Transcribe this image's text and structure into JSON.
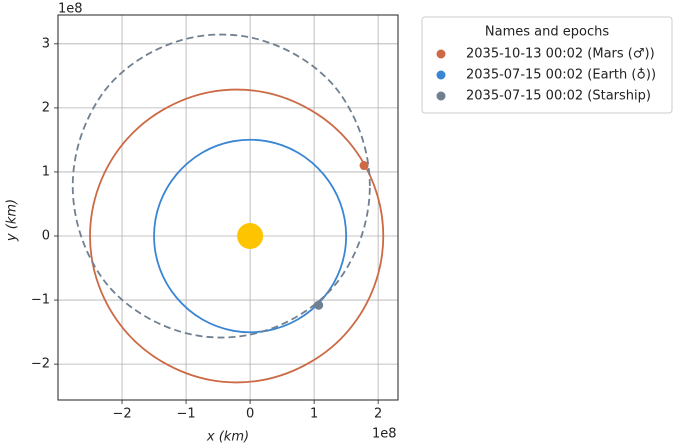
{
  "chart_data": {
    "type": "line",
    "legend_title": "Names and epochs",
    "x_label": "x (km)",
    "y_label": "y (km)",
    "x_offset_label": "1e8",
    "y_offset_label": "1e8",
    "xlim": [
      -3.0,
      2.31
    ],
    "ylim": [
      -2.56,
      3.45
    ],
    "xticks": [
      {
        "value": -2,
        "label": "−2"
      },
      {
        "value": -1,
        "label": "−1"
      },
      0,
      1,
      2
    ],
    "yticks": [
      {
        "value": -2,
        "label": "−2"
      },
      {
        "value": -1,
        "label": "−1"
      },
      0,
      1,
      2,
      3
    ],
    "grid": true,
    "legend": "outside-upper-right",
    "series": [
      {
        "name": "2035-10-13 00:02 (Mars (♂))",
        "color": "#cc6a45",
        "linestyle": "solid",
        "x": [
          2.08,
          1.94,
          1.54,
          0.94,
          0.19,
          -0.61,
          -1.36,
          -1.96,
          -2.36,
          -2.5,
          -2.36,
          -1.96,
          -1.36,
          -0.61,
          0.19,
          0.94,
          1.54,
          1.94,
          2.08
        ],
        "y": [
          0,
          0.78,
          1.47,
          1.97,
          2.25,
          2.25,
          1.97,
          1.47,
          0.78,
          0,
          -0.78,
          -1.47,
          -1.97,
          -2.25,
          -2.25,
          -1.97,
          -1.47,
          -0.78,
          0
        ],
        "marker": {
          "x": 1.78,
          "y": 1.1
        }
      },
      {
        "name": "2035-07-15 00:02 (Earth (♁))",
        "color": "#3a86d4",
        "linestyle": "solid",
        "x": [
          1.5,
          1.41,
          1.15,
          0.75,
          0.26,
          -0.26,
          -0.75,
          -1.15,
          -1.41,
          -1.5,
          -1.41,
          -1.15,
          -0.75,
          -0.26,
          0.26,
          0.75,
          1.15,
          1.41,
          1.5
        ],
        "y": [
          0,
          0.51,
          0.96,
          1.3,
          1.48,
          1.48,
          1.3,
          0.96,
          0.51,
          0,
          -0.51,
          -0.96,
          -1.3,
          -1.48,
          -1.48,
          -1.3,
          -0.96,
          -0.51,
          0
        ],
        "marker": {
          "x": 1.07,
          "y": -1.08
        }
      },
      {
        "name": "2035-07-15 00:02 (Starship)",
        "color": "#708090",
        "linestyle": "dashed",
        "x": [
          1.87,
          1.73,
          1.33,
          0.71,
          -0.05,
          -0.85,
          -1.61,
          -2.23,
          -2.63,
          -2.77,
          -2.63,
          -2.23,
          -1.61,
          -0.85,
          -0.05,
          0.71,
          1.33,
          1.73,
          1.87
        ],
        "y": [
          0.78,
          1.59,
          2.32,
          2.83,
          3.11,
          3.11,
          2.83,
          2.32,
          1.59,
          0.78,
          -0.03,
          -0.76,
          -1.27,
          -1.55,
          -1.55,
          -1.27,
          -0.76,
          -0.03,
          0.78
        ],
        "marker": {
          "x": 1.07,
          "y": -1.08
        }
      }
    ],
    "sun": {
      "x": 0,
      "y": 0,
      "color": "#ffc400"
    }
  }
}
